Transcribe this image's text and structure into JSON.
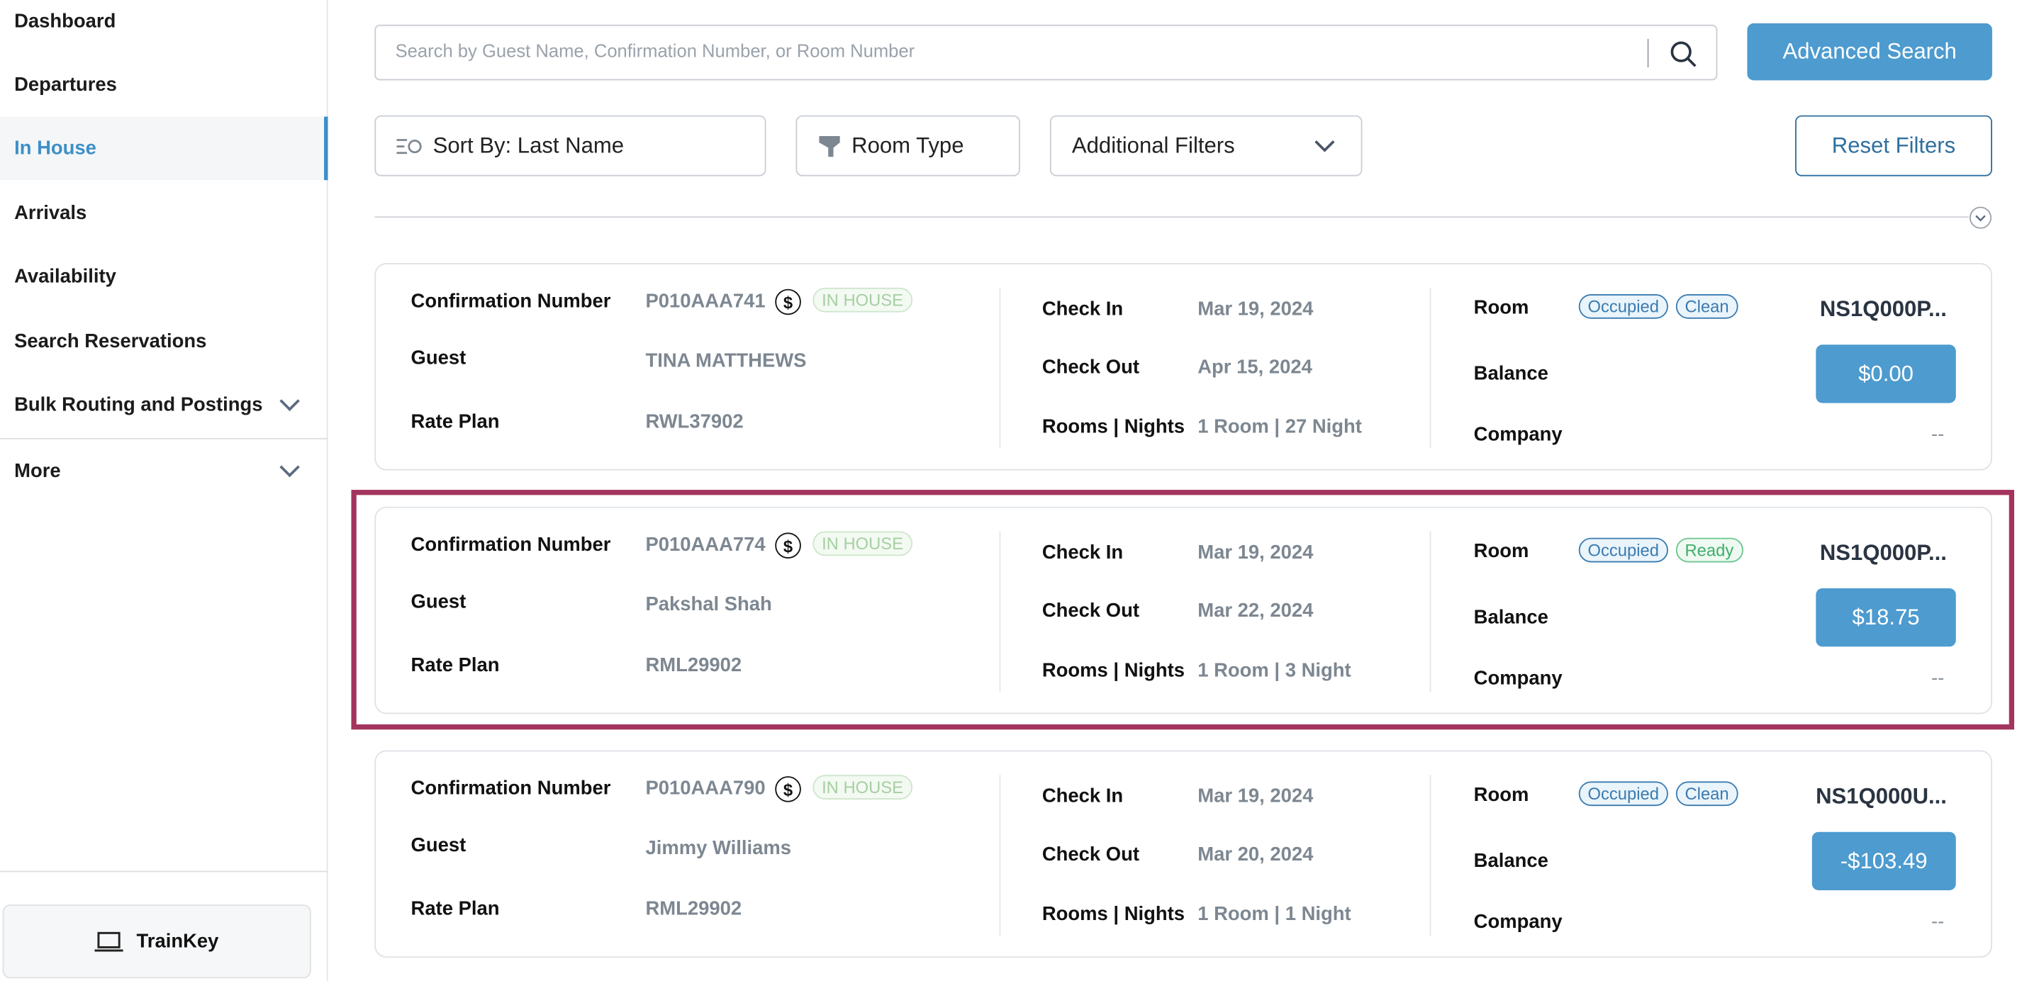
{
  "sidebar": {
    "items": [
      {
        "label": "Dashboard",
        "active": false
      },
      {
        "label": "Departures",
        "active": false
      },
      {
        "label": "In House",
        "active": true
      },
      {
        "label": "Arrivals",
        "active": false
      },
      {
        "label": "Availability",
        "active": false
      },
      {
        "label": "Search Reservations",
        "active": false
      },
      {
        "label": "Bulk Routing and Postings",
        "active": false,
        "expandable": true
      },
      {
        "label": "More",
        "active": false,
        "expandable": true
      }
    ],
    "trainkey_label": "TrainKey"
  },
  "search": {
    "placeholder": "Search by Guest Name, Confirmation Number, or Room Number",
    "value": "",
    "advanced_label": "Advanced Search"
  },
  "filters": {
    "sort_label": "Sort By: Last Name",
    "room_type_label": "Room Type",
    "additional_label": "Additional Filters",
    "reset_label": "Reset Filters"
  },
  "labels": {
    "confirmation": "Confirmation Number",
    "guest": "Guest",
    "rate_plan": "Rate Plan",
    "check_in": "Check In",
    "check_out": "Check Out",
    "rooms_nights": "Rooms | Nights",
    "room": "Room",
    "balance": "Balance",
    "company": "Company"
  },
  "colors": {
    "accent": "#4d9bcf",
    "highlight": "#a3345e",
    "in_house": "#a6cfa2"
  },
  "reservations": [
    {
      "confirmation": "P010AAA741",
      "status": "IN HOUSE",
      "guest": "TINA MATTHEWS",
      "rate_plan": "RWL37902",
      "check_in": "Mar 19, 2024",
      "check_out": "Apr 15, 2024",
      "rooms_nights": "1 Room | 27 Night",
      "room_status": "Occupied",
      "hk_status": "Clean",
      "room": "NS1Q000P...",
      "balance": "$0.00",
      "company": "--",
      "highlighted": false
    },
    {
      "confirmation": "P010AAA774",
      "status": "IN HOUSE",
      "guest": "Pakshal Shah",
      "rate_plan": "RML29902",
      "check_in": "Mar 19, 2024",
      "check_out": "Mar 22, 2024",
      "rooms_nights": "1 Room | 3 Night",
      "room_status": "Occupied",
      "hk_status": "Ready",
      "room": "NS1Q000P...",
      "balance": "$18.75",
      "company": "--",
      "highlighted": true
    },
    {
      "confirmation": "P010AAA790",
      "status": "IN HOUSE",
      "guest": "Jimmy Williams",
      "rate_plan": "RML29902",
      "check_in": "Mar 19, 2024",
      "check_out": "Mar 20, 2024",
      "rooms_nights": "1 Room | 1 Night",
      "room_status": "Occupied",
      "hk_status": "Clean",
      "room": "NS1Q000U...",
      "balance": "-$103.49",
      "company": "--",
      "highlighted": false
    }
  ]
}
